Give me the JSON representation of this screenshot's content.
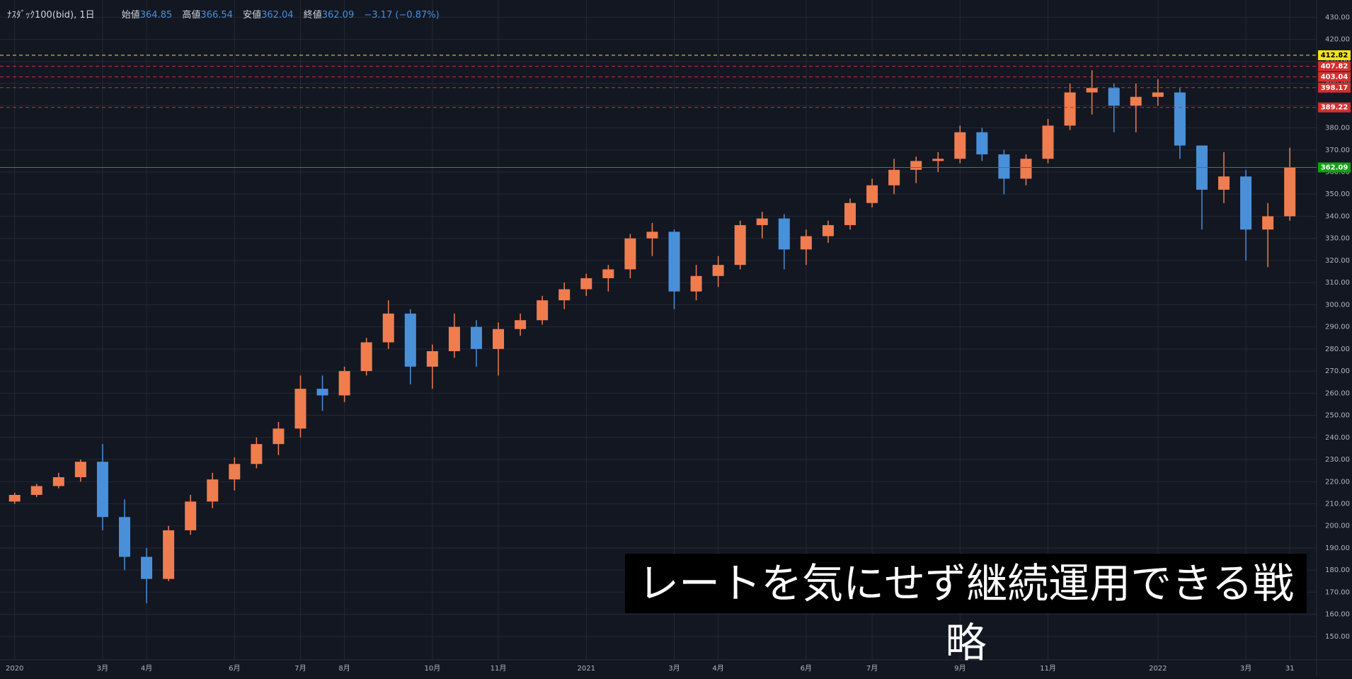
{
  "header": {
    "symbol": "ﾅｽﾀﾞｯｸ100(bid), 1日",
    "open_label": "始値",
    "open": 364.85,
    "high_label": "高値",
    "high": 366.54,
    "low_label": "安値",
    "low": 362.04,
    "close_label": "終値",
    "close": 362.09,
    "change": "−3.17 (−0.87%)"
  },
  "caption": "レートを気にせず継続運用できる戦略",
  "chart_data": {
    "type": "candlestick",
    "up_color": "#ef7d4f",
    "down_color": "#4a90d9",
    "grid": true,
    "categories": [
      "2020",
      null,
      null,
      null,
      "3月",
      null,
      "4月",
      null,
      null,
      null,
      "6月",
      null,
      null,
      "7月",
      null,
      "8月",
      null,
      null,
      null,
      "10月",
      null,
      null,
      "11月",
      null,
      null,
      null,
      "2021",
      null,
      null,
      null,
      "3月",
      null,
      "4月",
      null,
      null,
      null,
      "6月",
      null,
      null,
      "7月",
      null,
      null,
      null,
      "9月",
      null,
      null,
      null,
      "11月",
      null,
      null,
      null,
      null,
      "2022",
      null,
      null,
      null,
      "3月",
      null,
      "31"
    ],
    "open": [
      211,
      214,
      218,
      222,
      229,
      204,
      186,
      176,
      198,
      211,
      221,
      228,
      237,
      244,
      262,
      259,
      270,
      283,
      296,
      272,
      279,
      290,
      280,
      289,
      293,
      302,
      307,
      312,
      316,
      330,
      333,
      306,
      313,
      318,
      336,
      339,
      325,
      331,
      336,
      346,
      354,
      361,
      365,
      366,
      378,
      368,
      357,
      366,
      381,
      396,
      398,
      390,
      394,
      396,
      372,
      352,
      358,
      334,
      340
    ],
    "high": [
      215,
      219,
      224,
      230,
      237,
      212,
      190,
      200,
      214,
      224,
      231,
      240,
      247,
      268,
      268,
      272,
      285,
      302,
      298,
      282,
      296,
      293,
      292,
      296,
      304,
      310,
      314,
      318,
      332,
      337,
      334,
      318,
      322,
      338,
      342,
      341,
      334,
      338,
      348,
      357,
      366,
      367,
      369,
      381,
      380,
      370,
      368,
      384,
      400,
      406,
      400,
      400,
      402,
      398,
      372,
      369,
      361,
      346,
      371
    ],
    "low": [
      210,
      213,
      217,
      220,
      198,
      180,
      165,
      175,
      196,
      208,
      216,
      226,
      232,
      240,
      252,
      256,
      268,
      280,
      264,
      262,
      276,
      272,
      268,
      286,
      291,
      298,
      304,
      306,
      312,
      322,
      298,
      302,
      308,
      316,
      330,
      316,
      318,
      328,
      334,
      344,
      350,
      355,
      360,
      364,
      365,
      350,
      354,
      364,
      379,
      386,
      378,
      378,
      390,
      366,
      334,
      346,
      320,
      317,
      338
    ],
    "close": [
      214,
      218,
      222,
      229,
      204,
      186,
      176,
      198,
      211,
      221,
      228,
      237,
      244,
      262,
      259,
      270,
      283,
      296,
      272,
      279,
      290,
      280,
      289,
      293,
      302,
      307,
      312,
      316,
      330,
      333,
      306,
      313,
      318,
      336,
      339,
      325,
      331,
      336,
      346,
      354,
      361,
      365,
      366,
      378,
      368,
      357,
      366,
      381,
      396,
      398,
      390,
      394,
      396,
      372,
      352,
      358,
      334,
      340,
      362.09
    ],
    "ylim": [
      139.4,
      437.8
    ],
    "yticks": [
      {
        "value": 150,
        "label": "150.00"
      },
      {
        "value": 160,
        "label": "160.00"
      },
      {
        "value": 170,
        "label": "170.00"
      },
      {
        "value": 180,
        "label": "180.00"
      },
      {
        "value": 190,
        "label": "190.00"
      },
      {
        "value": 200,
        "label": "200.00"
      },
      {
        "value": 210,
        "label": "210.00"
      },
      {
        "value": 220,
        "label": "220.00"
      },
      {
        "value": 230,
        "label": "230.00"
      },
      {
        "value": 240,
        "label": "240.00"
      },
      {
        "value": 250,
        "label": "250.00"
      },
      {
        "value": 260,
        "label": "260.00"
      },
      {
        "value": 270,
        "label": "270.00"
      },
      {
        "value": 280,
        "label": "280.00"
      },
      {
        "value": 290,
        "label": "290.00"
      },
      {
        "value": 300,
        "label": "300.00"
      },
      {
        "value": 310,
        "label": "310.00"
      },
      {
        "value": 320,
        "label": "320.00"
      },
      {
        "value": 330,
        "label": "330.00"
      },
      {
        "value": 340,
        "label": "340.00"
      },
      {
        "value": 350,
        "label": "350.00"
      },
      {
        "value": 360,
        "label": "360.00"
      },
      {
        "value": 370,
        "label": "370.00"
      },
      {
        "value": 380,
        "label": "380.00"
      },
      {
        "value": 390,
        "label": "390.00"
      },
      {
        "value": 400,
        "label": "400.00"
      },
      {
        "value": 410,
        "label": "410.00"
      },
      {
        "value": 420,
        "label": "420.00"
      },
      {
        "value": 430,
        "label": "430.00"
      }
    ],
    "price_lines": [
      {
        "value": 412.82,
        "color": "#f5e21b",
        "text_color": "#000000",
        "dashed": true
      },
      {
        "value": 407.82,
        "color": "#d32f2f",
        "text_color": "#ffffff",
        "dashed": true
      },
      {
        "value": 403.04,
        "color": "#d32f2f",
        "text_color": "#ffffff",
        "dashed": true
      },
      {
        "value": 398.17,
        "color": "#d32f2f",
        "text_color": "#ffffff",
        "dashed": true
      },
      {
        "value": 389.22,
        "color": "#d32f2f",
        "text_color": "#ffffff",
        "dashed": true
      },
      {
        "value": 362.09,
        "color": "#12a312",
        "text_color": "#ffffff",
        "dashed": false
      }
    ]
  }
}
